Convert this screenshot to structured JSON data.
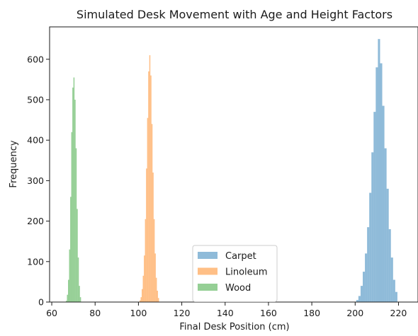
{
  "chart_data": {
    "type": "histogram",
    "title": "Simulated Desk Movement with Age and Height Factors",
    "xlabel": "Final Desk Position (cm)",
    "ylabel": "Frequency",
    "xlim": [
      59,
      229
    ],
    "ylim": [
      0,
      680
    ],
    "xticks": [
      60,
      80,
      100,
      120,
      140,
      160,
      180,
      200,
      220
    ],
    "yticks": [
      0,
      100,
      200,
      300,
      400,
      500,
      600
    ],
    "grid": false,
    "legend_position": "bottom-center",
    "series": [
      {
        "name": "Carpet",
        "color": "#1f77b4",
        "opacity": 0.5,
        "mean": 210,
        "bin_edges": [
          200.5,
          201.5,
          202.5,
          203.5,
          204.5,
          205.5,
          206.5,
          207.5,
          208.5,
          209.5,
          210.5,
          211.5,
          212.5,
          213.5,
          214.5,
          215.5,
          216.5,
          217.5,
          218.5,
          219.5
        ],
        "counts": [
          5,
          15,
          40,
          75,
          120,
          185,
          270,
          370,
          470,
          580,
          650,
          590,
          485,
          380,
          280,
          180,
          110,
          55,
          25
        ]
      },
      {
        "name": "Linoleum",
        "color": "#ff7f0e",
        "opacity": 0.5,
        "mean": 105,
        "bin_edges": [
          100.5,
          101.0,
          101.5,
          102.0,
          102.5,
          103.0,
          103.5,
          104.0,
          104.5,
          105.0,
          105.5,
          106.0,
          106.5,
          107.0,
          107.5,
          108.0,
          108.5,
          109.0,
          109.5
        ],
        "counts": [
          4,
          12,
          32,
          65,
          115,
          205,
          330,
          455,
          570,
          610,
          560,
          440,
          320,
          205,
          120,
          60,
          28,
          10
        ]
      },
      {
        "name": "Wood",
        "color": "#2ca02c",
        "opacity": 0.5,
        "mean": 70,
        "bin_edges": [
          66.5,
          67.0,
          67.5,
          68.0,
          68.5,
          69.0,
          69.5,
          70.0,
          70.5,
          71.0,
          71.5,
          72.0,
          72.5,
          73.0,
          73.5
        ],
        "counts": [
          3,
          18,
          55,
          130,
          260,
          420,
          530,
          555,
          500,
          380,
          230,
          110,
          40,
          12
        ]
      }
    ]
  }
}
